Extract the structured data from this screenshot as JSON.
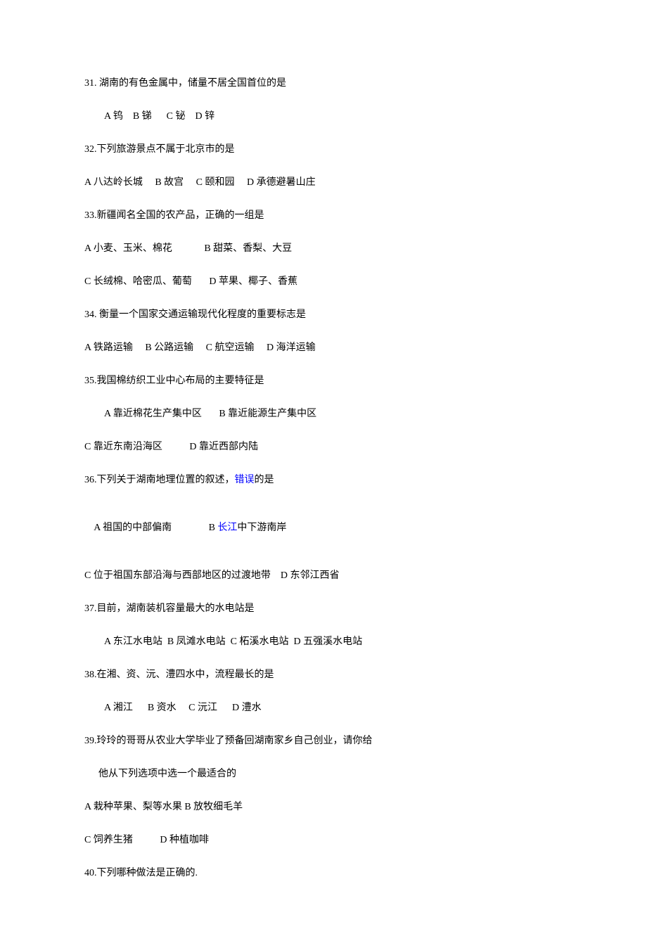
{
  "text_colors": {
    "body": "#000000",
    "link": "#0000ff"
  },
  "font_size": 14,
  "q31": {
    "stem": "31. 湖南的有色金属中，储量不居全国首位的是",
    "opts": "A 钨    B 锑      C 铋    D 锌"
  },
  "q32": {
    "stem": "32.下列旅游景点不属于北京市的是",
    "opts": "A 八达岭长城     B 故宫     C 颐和园     D 承德避暑山庄"
  },
  "q33": {
    "stem": "33.新疆闻名全国的农产品，正确的一组是",
    "opts1": "A 小麦、玉米、棉花             B 甜菜、香梨、大豆",
    "opts2": "C 长绒棉、哈密瓜、葡萄       D 苹果、椰子、香蕉"
  },
  "q34": {
    "stem": "34. 衡量一个国家交通运输现代化程度的重要标志是",
    "opts": "A 铁路运输     B 公路运输     C 航空运输     D 海洋运输"
  },
  "q35": {
    "stem": "35.我国棉纺织工业中心布局的主要特征是",
    "opts1": "A 靠近棉花生产集中区       B 靠近能源生产集中区",
    "opts2": "C 靠近东南沿海区           D 靠近西部内陆"
  },
  "q36": {
    "stem_a": "36.下列关于湖南地理位置的叙述，",
    "stem_b": "错误",
    "stem_c": "的是",
    "opts1_a": "A 祖国的中部偏南               B ",
    "opts1_b": "长江",
    "opts1_c": "中下游南岸",
    "opts2": "C 位于祖国东部沿海与西部地区的过渡地带    D 东邻江西省"
  },
  "q37": {
    "stem": "37.目前，湖南装机容量最大的水电站是",
    "opts": "A 东江水电站  B 凤滩水电站  C 柘溪水电站  D 五强溪水电站"
  },
  "q38": {
    "stem": "38.在湘、资、沅、澧四水中，流程最长的是",
    "opts": "A 湘江      B 资水     C 沅江      D 澧水"
  },
  "q39": {
    "stem1": "39.玲玲的哥哥从农业大学毕业了预备回湖南家乡自己创业，请你给",
    "stem2": "他从下列选项中选一个最适合的",
    "opts1": "A 栽种苹果、梨等水果 B 放牧细毛羊",
    "opts2": "C 饲养生猪           D 种植咖啡"
  },
  "q40": {
    "stem": "40.下列哪种做法是正确的."
  }
}
